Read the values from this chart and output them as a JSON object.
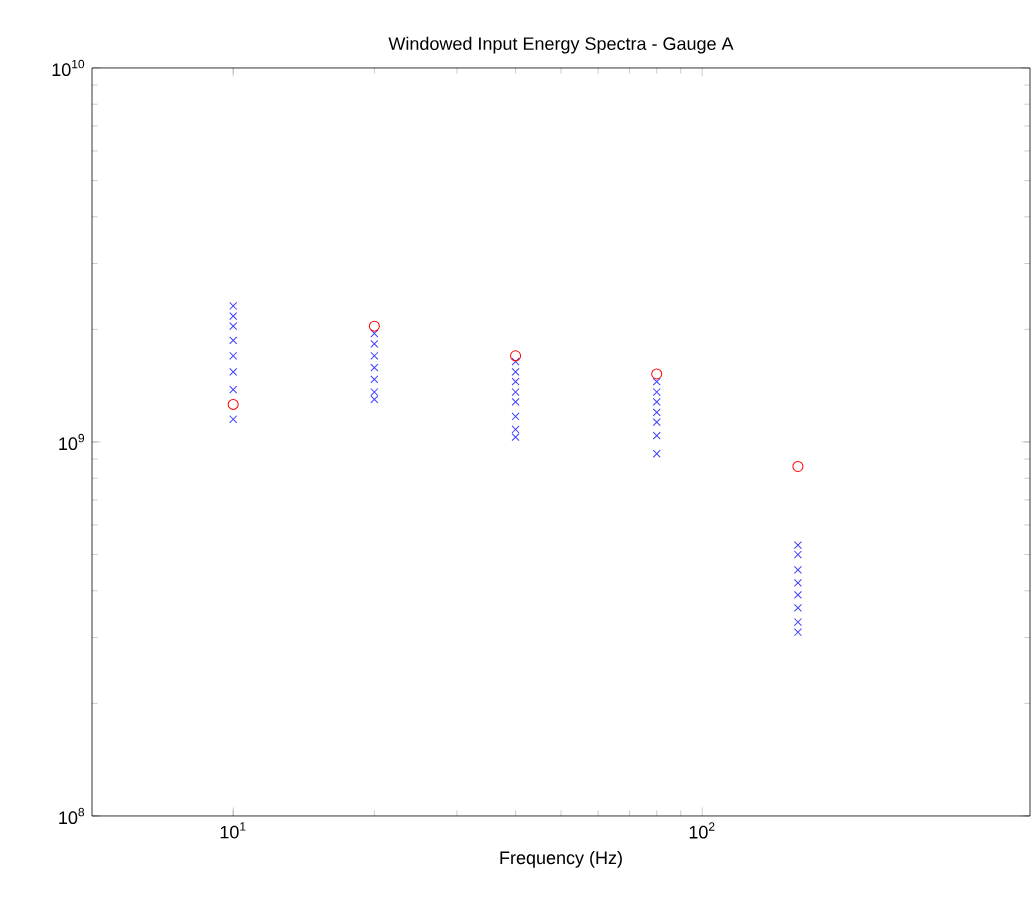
{
  "chart_data": {
    "type": "scatter",
    "title": "Windowed Input Energy Spectra - Gauge A",
    "xlabel": "Frequency (Hz)",
    "log": "xy",
    "xlim": [
      5,
      500
    ],
    "ylim": [
      100000000,
      10000000000
    ],
    "xticks": [
      {
        "value": 10,
        "label": "10$^{1}$"
      },
      {
        "value": 100,
        "label": "10$^{2}$"
      }
    ],
    "yticks": [
      {
        "value": 100000000,
        "label": "10$^{8}$"
      },
      {
        "value": 1000000000,
        "label": "10$^{9}$"
      },
      {
        "value": 10000000000,
        "label": "10$^{10}$"
      }
    ],
    "series": [
      {
        "color": "#4040ff",
        "marker": "cross",
        "x": [
          10,
          10,
          10,
          10,
          10,
          10,
          10,
          10,
          20,
          20,
          20,
          20,
          20,
          20,
          20,
          40,
          40,
          40,
          40,
          40,
          40,
          40,
          40,
          80,
          80,
          80,
          80,
          80,
          80,
          80,
          160,
          160,
          160,
          160,
          160,
          160,
          160,
          160
        ],
        "values": [
          2310000000,
          2170000000,
          2040000000,
          1870000000,
          1700000000,
          1540000000,
          1380000000,
          1150000000,
          1950000000,
          1830000000,
          1700000000,
          1580000000,
          1470000000,
          1360000000,
          1300000000,
          1640000000,
          1540000000,
          1450000000,
          1360000000,
          1280000000,
          1170000000,
          1080000000,
          1030000000,
          1450000000,
          1360000000,
          1280000000,
          1200000000,
          1130000000,
          1040000000,
          930000000,
          530000000,
          500000000,
          455000000,
          420000000,
          390000000,
          360000000,
          330000000,
          310000000
        ]
      },
      {
        "color": "#ff0000",
        "marker": "circle",
        "x": [
          10,
          20,
          40,
          80,
          160
        ],
        "values": [
          1260000000,
          2040000000,
          1700000000,
          1520000000,
          860000000
        ]
      }
    ]
  }
}
